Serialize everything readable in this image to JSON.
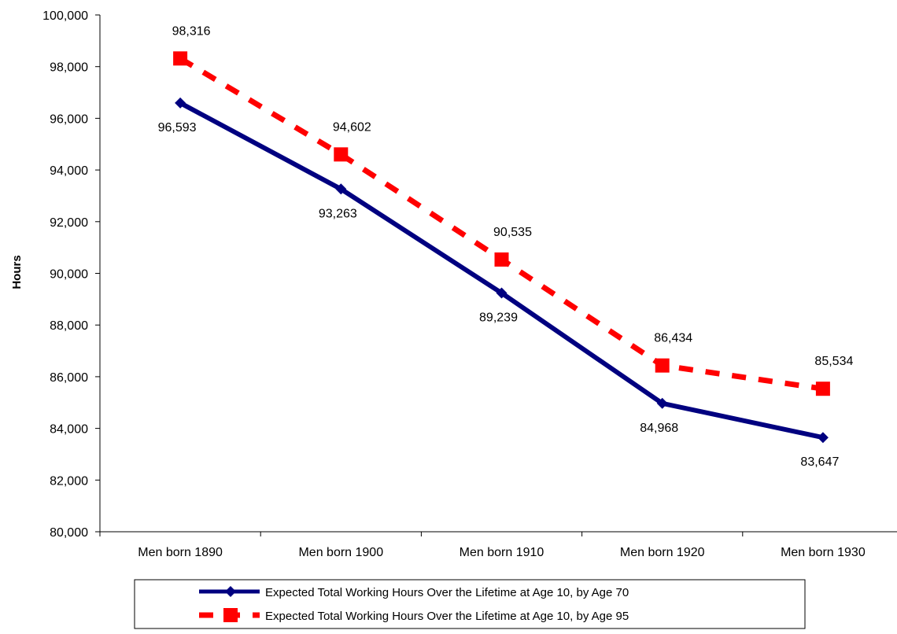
{
  "chart_data": {
    "type": "line",
    "title": "",
    "xlabel": "",
    "ylabel": "Hours",
    "ylim": [
      80000,
      100000
    ],
    "ytick_step": 2000,
    "categories": [
      "Men born 1890",
      "Men born 1900",
      "Men born 1910",
      "Men born 1920",
      "Men born 1930"
    ],
    "series": [
      {
        "name": "Expected Total Working Hours Over the Lifetime at Age 10, by Age 70",
        "values": [
          96593,
          93263,
          89239,
          84968,
          83647
        ],
        "labels": [
          "96,593",
          "93,263",
          "89,239",
          "84,968",
          "83,647"
        ],
        "color": "#000080",
        "line_style": "solid",
        "marker": "diamond"
      },
      {
        "name": "Expected Total Working Hours Over the Lifetime at Age 10, by Age 95",
        "values": [
          98316,
          94602,
          90535,
          86434,
          85534
        ],
        "labels": [
          "98,316",
          "94,602",
          "90,535",
          "86,434",
          "85,534"
        ],
        "color": "#ff0000",
        "line_style": "dashed",
        "marker": "square"
      }
    ],
    "legend_position": "bottom",
    "grid": false
  }
}
